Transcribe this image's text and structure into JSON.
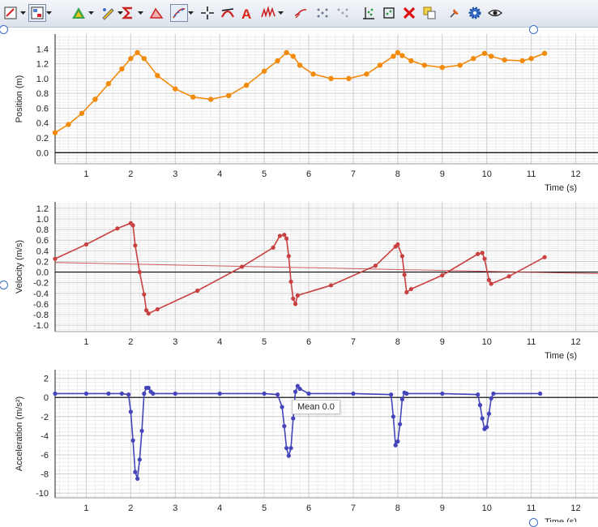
{
  "toolbar": {
    "tools": [
      {
        "icon": "graph-options-icon",
        "dropdown": true
      },
      {
        "icon": "view-layout-icon",
        "dropdown": true,
        "pressed": true
      },
      {
        "icon": "analyze-triangle-icon",
        "dropdown": true
      },
      {
        "icon": "highlight-pen-icon",
        "dropdown": true
      },
      {
        "icon": "sigma-statistics-icon",
        "dropdown": true
      },
      {
        "icon": "integral-area-icon"
      },
      {
        "icon": "curve-fit-icon",
        "dropdown": true,
        "pressed": true
      },
      {
        "icon": "examine-crosshair-icon"
      },
      {
        "icon": "tangent-icon"
      },
      {
        "icon": "annotation-a-icon"
      },
      {
        "icon": "interpolate-icon",
        "dropdown": true
      },
      {
        "icon": "smoothing-icon"
      },
      {
        "icon": "select-points-icon"
      },
      {
        "icon": "deselect-points-icon"
      },
      {
        "icon": "autoscale-icon"
      },
      {
        "icon": "autoscale-from-zero-icon"
      },
      {
        "icon": "delete-icon"
      },
      {
        "icon": "copy-graph-icon"
      },
      {
        "icon": "pin-icon"
      },
      {
        "icon": "settings-gear-icon"
      },
      {
        "icon": "eye-view-icon"
      }
    ]
  },
  "tooltip": {
    "text": "Mean 0.0"
  },
  "chart_data": [
    {
      "type": "line",
      "xlabel": "Time (s)",
      "ylabel": "Position (m)",
      "xlim": [
        0.3,
        12.5
      ],
      "ylim": [
        -0.15,
        1.6
      ],
      "xticks": [
        1,
        2,
        3,
        4,
        5,
        6,
        7,
        8,
        9,
        10,
        11,
        12
      ],
      "yticks": [
        0.0,
        0.2,
        0.4,
        0.6,
        0.8,
        1.0,
        1.2,
        1.4
      ],
      "ytick_labels": [
        "0.0",
        "0.2",
        "0.4",
        "0.6",
        "0.8",
        "1.0",
        "1.2",
        "1.4"
      ],
      "color": "#f28a0c",
      "series": [
        {
          "x": [
            0.3,
            0.6,
            0.9,
            1.2,
            1.5,
            1.8,
            2.0,
            2.15,
            2.3,
            2.6,
            3.0,
            3.4,
            3.8,
            4.2,
            4.6,
            5.0,
            5.3,
            5.5,
            5.65,
            5.8,
            6.1,
            6.5,
            6.9,
            7.3,
            7.6,
            7.9,
            8.0,
            8.1,
            8.3,
            8.6,
            9.0,
            9.4,
            9.7,
            9.95,
            10.1,
            10.4,
            10.8,
            11.0,
            11.3
          ],
          "y": [
            0.27,
            0.38,
            0.53,
            0.72,
            0.93,
            1.13,
            1.27,
            1.35,
            1.27,
            1.04,
            0.86,
            0.75,
            0.72,
            0.77,
            0.91,
            1.1,
            1.24,
            1.35,
            1.3,
            1.18,
            1.06,
            1.0,
            1.0,
            1.06,
            1.18,
            1.3,
            1.35,
            1.31,
            1.24,
            1.18,
            1.15,
            1.18,
            1.27,
            1.34,
            1.3,
            1.25,
            1.24,
            1.27,
            1.34
          ]
        }
      ]
    },
    {
      "type": "line",
      "xlabel": "Time (s)",
      "ylabel": "Velocity (m/s)",
      "xlim": [
        0.3,
        12.5
      ],
      "ylim": [
        -1.12,
        1.32
      ],
      "xticks": [
        1,
        2,
        3,
        4,
        5,
        6,
        7,
        8,
        9,
        10,
        11,
        12
      ],
      "yticks": [
        -1.0,
        -0.8,
        -0.6,
        -0.4,
        -0.2,
        0.0,
        0.2,
        0.4,
        0.6,
        0.8,
        1.0,
        1.2
      ],
      "ytick_labels": [
        "-1.0",
        "-0.8",
        "-0.6",
        "-0.4",
        "-0.2",
        "0.0",
        "0.2",
        "0.4",
        "0.6",
        "0.8",
        "1.0",
        "1.2"
      ],
      "color": "#c84040",
      "series": [
        {
          "x": [
            0.3,
            1.0,
            1.7,
            2.0,
            2.05,
            2.1,
            2.2,
            2.3,
            2.35,
            2.4,
            2.6,
            3.5,
            4.5,
            5.2,
            5.35,
            5.45,
            5.5,
            5.55,
            5.6,
            5.65,
            5.7,
            5.75,
            6.5,
            7.5,
            7.95,
            8.0,
            8.1,
            8.15,
            8.2,
            8.3,
            9.0,
            9.8,
            9.9,
            9.95,
            10.05,
            10.1,
            10.5,
            11.3
          ],
          "y": [
            0.25,
            0.52,
            0.82,
            0.92,
            0.88,
            0.5,
            0.0,
            -0.42,
            -0.72,
            -0.78,
            -0.7,
            -0.35,
            0.1,
            0.46,
            0.68,
            0.7,
            0.63,
            0.3,
            -0.18,
            -0.5,
            -0.6,
            -0.44,
            -0.25,
            0.12,
            0.48,
            0.52,
            0.3,
            -0.05,
            -0.38,
            -0.32,
            -0.06,
            0.34,
            0.36,
            0.25,
            -0.15,
            -0.22,
            -0.08,
            0.28
          ]
        }
      ],
      "fit_line": {
        "x": [
          0.3,
          12.5
        ],
        "y": [
          0.18,
          -0.03
        ]
      }
    },
    {
      "type": "line",
      "xlabel": "Time (s)",
      "ylabel": "Acceleration (m/s²)",
      "xlim": [
        0.3,
        12.5
      ],
      "ylim": [
        -10.5,
        2.9
      ],
      "xticks": [
        1,
        2,
        3,
        4,
        5,
        6,
        7,
        8,
        9,
        10,
        11,
        12
      ],
      "yticks": [
        -10,
        -8,
        -6,
        -4,
        -2,
        0,
        2
      ],
      "ytick_labels": [
        "-10",
        "-8",
        "-6",
        "-4",
        "-2",
        "0",
        "2"
      ],
      "color": "#4444bb",
      "series": [
        {
          "x": [
            0.3,
            1.0,
            1.5,
            1.8,
            1.95,
            2.0,
            2.05,
            2.1,
            2.15,
            2.2,
            2.25,
            2.3,
            2.35,
            2.4,
            2.45,
            2.5,
            3.0,
            4.0,
            5.0,
            5.3,
            5.4,
            5.45,
            5.5,
            5.55,
            5.6,
            5.65,
            5.7,
            5.75,
            5.8,
            6.0,
            7.0,
            7.85,
            7.9,
            7.95,
            8.0,
            8.05,
            8.1,
            8.15,
            8.2,
            9.0,
            9.8,
            9.85,
            9.9,
            9.95,
            10.0,
            10.05,
            10.1,
            10.15,
            11.2
          ],
          "y": [
            0.4,
            0.4,
            0.4,
            0.4,
            0.3,
            -1.5,
            -4.5,
            -7.8,
            -8.5,
            -6.5,
            -3.5,
            0.4,
            1.0,
            1.0,
            0.6,
            0.4,
            0.4,
            0.4,
            0.4,
            0.3,
            -1.0,
            -3.0,
            -5.3,
            -6.1,
            -5.3,
            -2.2,
            0.6,
            1.2,
            0.9,
            0.4,
            0.4,
            0.3,
            -2.0,
            -5.0,
            -4.6,
            -2.8,
            -0.2,
            0.5,
            0.4,
            0.4,
            0.3,
            -0.8,
            -2.2,
            -3.3,
            -3.1,
            -1.7,
            -0.1,
            0.4,
            0.4
          ]
        }
      ]
    }
  ]
}
